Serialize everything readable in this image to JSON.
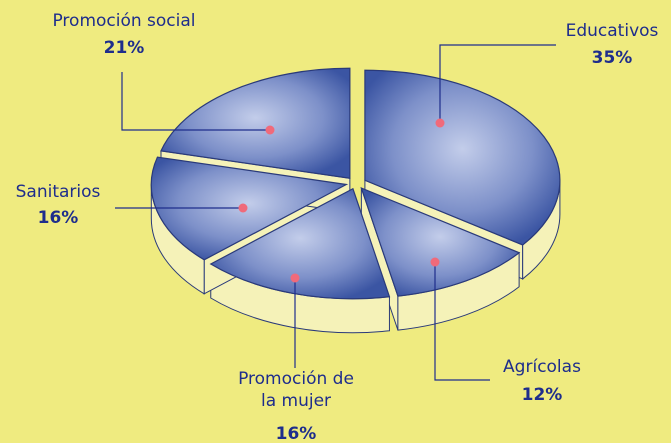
{
  "chart_data": {
    "type": "pie",
    "categories": [
      "Educativos",
      "Agrícolas",
      "Promoción de la mujer",
      "Sanitarios",
      "Promoción social"
    ],
    "values": [
      35,
      12,
      16,
      16,
      21
    ],
    "value_labels": [
      "35%",
      "12%",
      "16%",
      "16%",
      "21%"
    ],
    "color": "#3b55a3"
  }
}
